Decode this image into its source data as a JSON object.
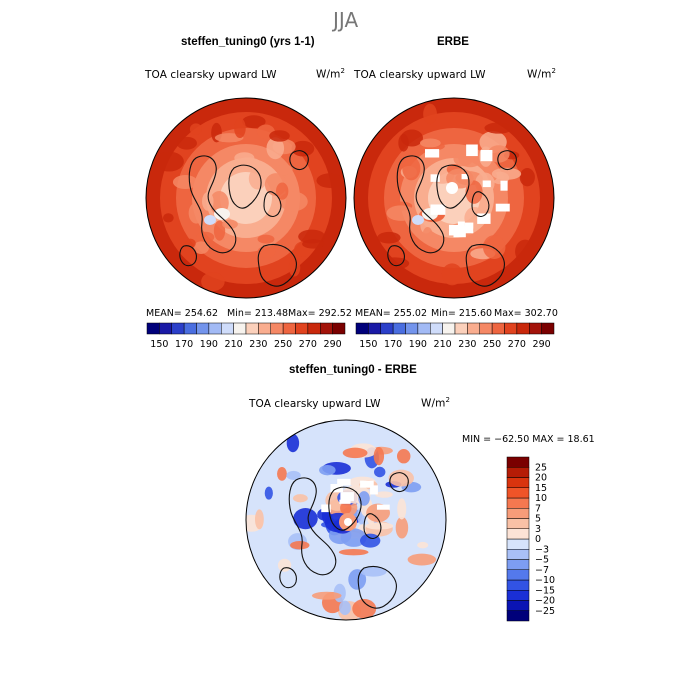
{
  "page": {
    "season": "JJA"
  },
  "panels": [
    {
      "title": "steffen_tuning0 (yrs 1-1)",
      "variable": "TOA clearsky upward LW",
      "units": "W/m²",
      "stats": {
        "mean": "MEAN= 254.62",
        "min": "Min= 213.48",
        "max": "Max= 292.52"
      }
    },
    {
      "title": "ERBE",
      "variable": "TOA clearsky upward LW",
      "units": "W/m²",
      "stats": {
        "mean": "MEAN= 255.02",
        "min": "Min= 215.60",
        "max": "Max= 302.70"
      }
    },
    {
      "title": "steffen_tuning0 - ERBE",
      "variable": "TOA clearsky upward LW",
      "units": "W/m²",
      "stats": {
        "minmax": "MIN = −62.50 MAX =  18.61"
      }
    }
  ],
  "chart_data": [
    {
      "type": "heatmap",
      "projection": "north-polar-stereographic",
      "title": "steffen_tuning0 (yrs 1-1)",
      "summary": {
        "mean": 254.62,
        "min": 213.48,
        "max": 292.52
      },
      "colorbar": {
        "orientation": "horizontal",
        "levels": [
          150,
          160,
          170,
          180,
          190,
          200,
          210,
          220,
          230,
          240,
          250,
          260,
          270,
          280,
          290
        ],
        "tick_labels": [
          "150",
          "170",
          "190",
          "210",
          "230",
          "250",
          "270",
          "290"
        ],
        "colors": [
          "#00007a",
          "#1a1aa6",
          "#2b3fc9",
          "#4a6ee0",
          "#7394ec",
          "#a2baf5",
          "#cfdcfa",
          "#f7f3ee",
          "#fbd0bb",
          "#f9ad8f",
          "#f58865",
          "#ee6540",
          "#e1431f",
          "#c9280c",
          "#a3130a",
          "#7a0000"
        ]
      }
    },
    {
      "type": "heatmap",
      "projection": "north-polar-stereographic",
      "title": "ERBE",
      "summary": {
        "mean": 255.02,
        "min": 215.6,
        "max": 302.7
      },
      "colorbar": {
        "orientation": "horizontal",
        "levels": [
          150,
          160,
          170,
          180,
          190,
          200,
          210,
          220,
          230,
          240,
          250,
          260,
          270,
          280,
          290
        ],
        "tick_labels": [
          "150",
          "170",
          "190",
          "210",
          "230",
          "250",
          "270",
          "290"
        ],
        "colors": [
          "#00007a",
          "#1a1aa6",
          "#2b3fc9",
          "#4a6ee0",
          "#7394ec",
          "#a2baf5",
          "#cfdcfa",
          "#f7f3ee",
          "#fbd0bb",
          "#f9ad8f",
          "#f58865",
          "#ee6540",
          "#e1431f",
          "#c9280c",
          "#a3130a",
          "#7a0000"
        ]
      }
    },
    {
      "type": "heatmap",
      "projection": "north-polar-stereographic",
      "title": "steffen_tuning0 - ERBE",
      "summary": {
        "min": -62.5,
        "max": 18.61
      },
      "colorbar": {
        "orientation": "vertical",
        "levels": [
          -25,
          -20,
          -15,
          -10,
          -7,
          -5,
          -3,
          0,
          3,
          5,
          7,
          10,
          15,
          20,
          25
        ],
        "tick_labels": [
          "25",
          "20",
          "15",
          "10",
          "7",
          "5",
          "3",
          "0",
          "−3",
          "−5",
          "−7",
          "−10",
          "−15",
          "−20",
          "−25"
        ],
        "colors": [
          "#00007a",
          "#0a14b4",
          "#1a2fd6",
          "#3253e4",
          "#5479ec",
          "#7d9df2",
          "#a9c0f7",
          "#d6e3fb",
          "#fce3d6",
          "#f9c1a6",
          "#f79c79",
          "#f57850",
          "#ef5428",
          "#d9340e",
          "#b51c06",
          "#7a0000"
        ]
      }
    }
  ]
}
